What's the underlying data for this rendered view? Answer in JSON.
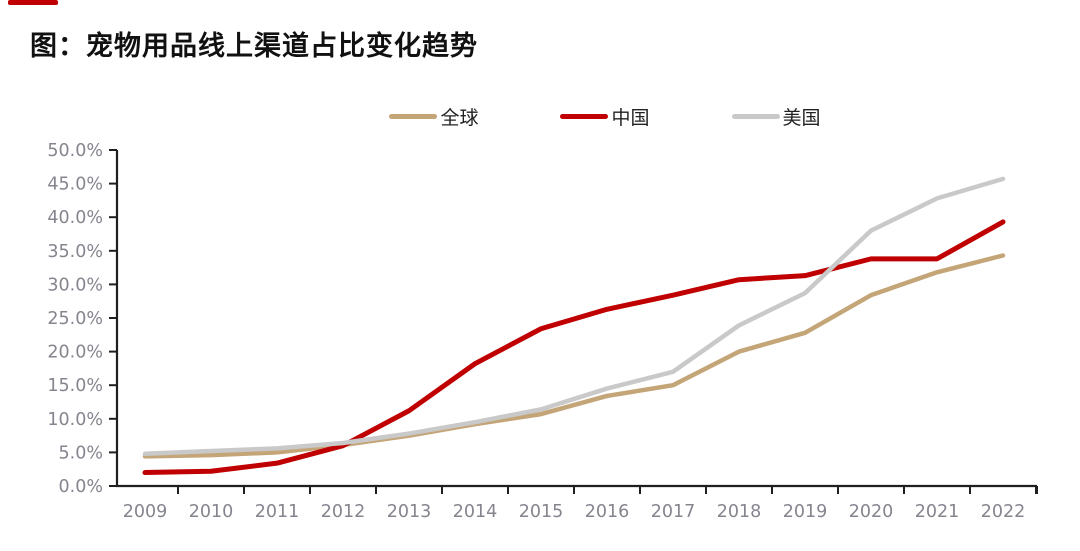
{
  "page": {
    "title": "图：宠物用品线上渠道占比变化趋势"
  },
  "decorations": {
    "top_left_accent_color": "#c00000"
  },
  "chart_data": {
    "type": "line",
    "title": "图：宠物用品线上渠道占比变化趋势",
    "categories": [
      "2009",
      "2010",
      "2011",
      "2012",
      "2013",
      "2014",
      "2015",
      "2016",
      "2017",
      "2018",
      "2019",
      "2020",
      "2021",
      "2022"
    ],
    "series": [
      {
        "name": "全球",
        "color": "#c4a578",
        "width": 4.5,
        "values": [
          4.4,
          4.6,
          5.0,
          6.1,
          7.5,
          9.2,
          10.7,
          13.4,
          15.0,
          20.0,
          22.8,
          28.4,
          31.8,
          34.3
        ]
      },
      {
        "name": "中国",
        "color": "#c00000",
        "width": 5,
        "values": [
          2.0,
          2.2,
          3.4,
          6.0,
          11.2,
          18.2,
          23.4,
          26.3,
          28.4,
          30.7,
          31.3,
          33.8,
          33.8,
          39.3
        ]
      },
      {
        "name": "美国",
        "color": "#c9c9c9",
        "width": 4.5,
        "values": [
          4.8,
          5.2,
          5.6,
          6.4,
          7.8,
          9.5,
          11.4,
          14.5,
          17.0,
          23.9,
          28.7,
          38.0,
          42.8,
          45.7
        ]
      }
    ],
    "ylim": [
      0,
      50
    ],
    "y_tick_step": 5,
    "y_tick_labels": [
      "0.0%",
      "5.0%",
      "10.0%",
      "15.0%",
      "20.0%",
      "25.0%",
      "30.0%",
      "35.0%",
      "40.0%",
      "45.0%",
      "50.0%"
    ],
    "xlabel": "",
    "ylabel": "",
    "grid": false,
    "legend_position": "top-center",
    "axis_color": "#1f1f1f",
    "tick_label_color": "#85858f"
  }
}
